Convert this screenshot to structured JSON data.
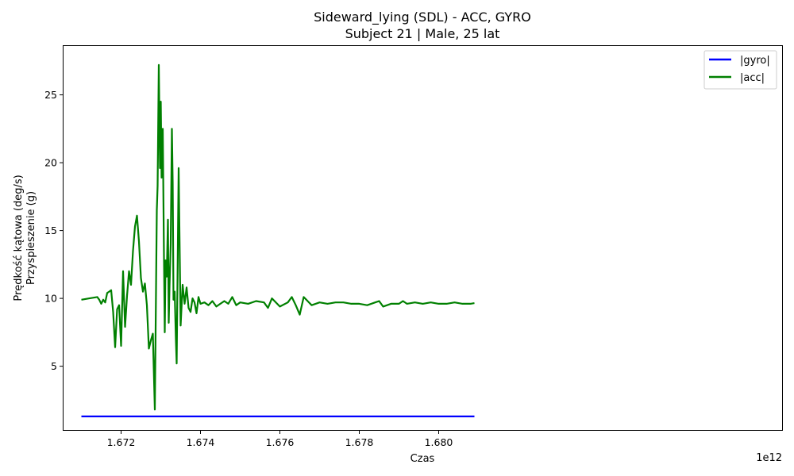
{
  "chart_data": {
    "type": "line",
    "title": "Sideward_lying (SDL) - ACC, GYRO",
    "subtitle": "Subject 21 | Male, 25 lat",
    "xlabel": "Czas",
    "ylabel_lines": [
      "Prędkość kątowa (deg/s)",
      "Przyspieszenie (g)"
    ],
    "x_offset_label": "1e12",
    "xlim": [
      1.67055,
      1.68865
    ],
    "ylim": [
      0.3,
      28.6
    ],
    "x_ticks": [
      1.672,
      1.674,
      1.676,
      1.678,
      1.68
    ],
    "x_tick_labels": [
      "1.672",
      "1.674",
      "1.676",
      "1.678",
      "1.680"
    ],
    "y_ticks": [
      5,
      10,
      15,
      20,
      25
    ],
    "y_tick_labels": [
      "5",
      "10",
      "15",
      "20",
      "25"
    ],
    "grid": false,
    "legend_position": "top-right",
    "series": [
      {
        "name": "|gyro|",
        "color": "#0000ff",
        "x": [
          1.671,
          1.6809
        ],
        "y": [
          1.3,
          1.3
        ]
      },
      {
        "name": "|acc|",
        "color": "#008000",
        "x": [
          1.671,
          1.6712,
          1.6714,
          1.67145,
          1.6715,
          1.67155,
          1.6716,
          1.67165,
          1.6717,
          1.67175,
          1.6718,
          1.67185,
          1.6719,
          1.67195,
          1.672,
          1.67205,
          1.6721,
          1.67215,
          1.6722,
          1.67225,
          1.6723,
          1.67235,
          1.6724,
          1.67245,
          1.6725,
          1.67255,
          1.6726,
          1.67265,
          1.6727,
          1.67275,
          1.6728,
          1.67285,
          1.6729,
          1.67292,
          1.67295,
          1.67298,
          1.673,
          1.67302,
          1.67305,
          1.67308,
          1.6731,
          1.67312,
          1.67315,
          1.67318,
          1.6732,
          1.67322,
          1.67325,
          1.67328,
          1.6733,
          1.67332,
          1.67335,
          1.67338,
          1.6734,
          1.67345,
          1.6735,
          1.67355,
          1.6736,
          1.67365,
          1.6737,
          1.67375,
          1.6738,
          1.67385,
          1.6739,
          1.67395,
          1.674,
          1.6741,
          1.6742,
          1.6743,
          1.6744,
          1.6745,
          1.6746,
          1.6747,
          1.6748,
          1.6749,
          1.675,
          1.6752,
          1.6754,
          1.6756,
          1.6757,
          1.6758,
          1.676,
          1.6762,
          1.6763,
          1.6764,
          1.6765,
          1.6766,
          1.6768,
          1.677,
          1.6772,
          1.6774,
          1.6776,
          1.6778,
          1.678,
          1.6782,
          1.6784,
          1.6785,
          1.6786,
          1.6788,
          1.679,
          1.6791,
          1.6792,
          1.6794,
          1.6796,
          1.6798,
          1.68,
          1.6802,
          1.6804,
          1.6806,
          1.6808,
          1.6809
        ],
        "y": [
          9.9,
          10.0,
          10.1,
          9.9,
          9.6,
          9.9,
          9.7,
          10.4,
          10.5,
          10.6,
          9.0,
          6.4,
          9.2,
          9.5,
          6.5,
          12.0,
          7.9,
          10.2,
          12.0,
          11.0,
          13.5,
          15.3,
          16.1,
          14.2,
          11.5,
          10.5,
          11.1,
          9.5,
          6.3,
          6.9,
          7.4,
          1.8,
          16.5,
          18.3,
          27.2,
          19.6,
          24.5,
          18.9,
          22.5,
          13.1,
          7.5,
          12.8,
          11.6,
          15.8,
          8.2,
          10.9,
          14.0,
          22.5,
          18.5,
          9.9,
          10.5,
          7.0,
          5.2,
          19.6,
          8.0,
          11.0,
          9.6,
          10.8,
          9.3,
          9.0,
          10.0,
          9.7,
          8.9,
          10.1,
          9.6,
          9.7,
          9.5,
          9.8,
          9.4,
          9.6,
          9.8,
          9.6,
          10.1,
          9.5,
          9.7,
          9.6,
          9.8,
          9.7,
          9.3,
          10.0,
          9.4,
          9.7,
          10.1,
          9.5,
          8.8,
          10.1,
          9.5,
          9.7,
          9.6,
          9.7,
          9.7,
          9.6,
          9.6,
          9.5,
          9.7,
          9.8,
          9.4,
          9.6,
          9.6,
          9.8,
          9.6,
          9.7,
          9.6,
          9.7,
          9.6,
          9.6,
          9.7,
          9.6,
          9.6,
          9.65
        ]
      }
    ]
  }
}
